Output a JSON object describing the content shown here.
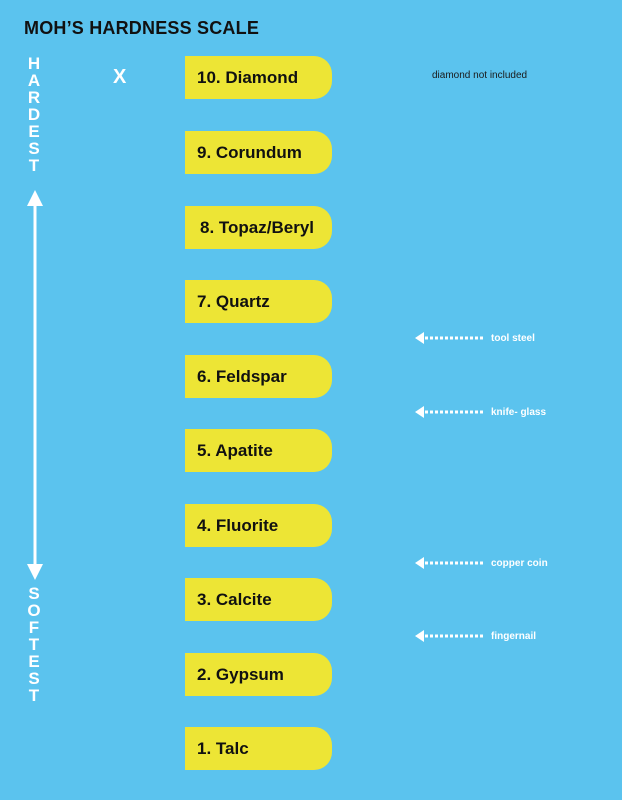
{
  "title": "MOH’S HARDNESS SCALE",
  "top_label": [
    "H",
    "A",
    "R",
    "D",
    "E",
    "S",
    "T"
  ],
  "bottom_label": [
    "S",
    "O",
    "F",
    "T",
    "E",
    "S",
    "T"
  ],
  "x_mark": "X",
  "top_note": "diamond not included",
  "minerals": [
    {
      "hardness": 10,
      "label": "10. Diamond"
    },
    {
      "hardness": 9,
      "label": "9. Corundum"
    },
    {
      "hardness": 8,
      "label": "8. Topaz/Beryl"
    },
    {
      "hardness": 7,
      "label": "7. Quartz"
    },
    {
      "hardness": 6,
      "label": "6. Feldspar"
    },
    {
      "hardness": 5,
      "label": "5. Apatite"
    },
    {
      "hardness": 4,
      "label": "4. Fluorite"
    },
    {
      "hardness": 3,
      "label": "3. Calcite"
    },
    {
      "hardness": 2,
      "label": "2. Gypsum"
    },
    {
      "hardness": 1,
      "label": "1. Talc"
    }
  ],
  "references": [
    {
      "label": "tool steel"
    },
    {
      "label": "knife- glass"
    },
    {
      "label": "copper coin"
    },
    {
      "label": "fingernail"
    }
  ],
  "colors": {
    "background": "#5bc3ee",
    "pill": "#ede535",
    "text_dark": "#111111",
    "text_light": "#ffffff"
  }
}
